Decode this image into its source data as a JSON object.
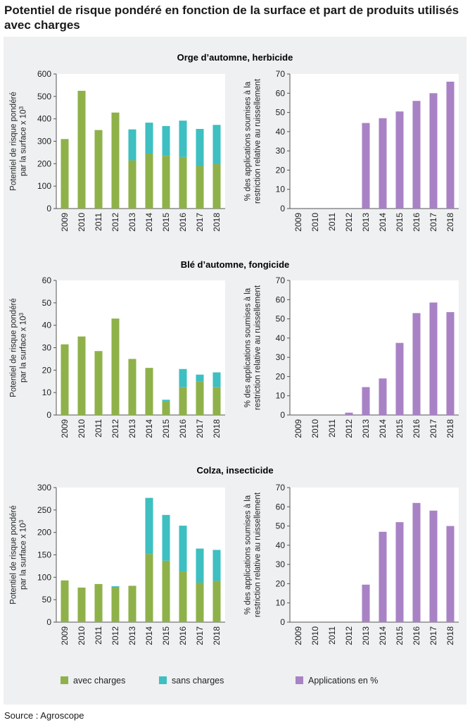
{
  "header": {
    "title": "Potentiel de risque pondéré en fonction de la surface et part de produits utilisés avec charges"
  },
  "footer": {
    "source": "Source : Agroscope"
  },
  "colors": {
    "avec": "#8fb14a",
    "sans": "#3ebfc1",
    "pct": "#a882c5",
    "panel": "#eef0f2",
    "plot": "#ffffff"
  },
  "legend": {
    "avec": "avec charges",
    "sans": "sans charges",
    "pct": "Applications en %"
  },
  "chart_data": [
    {
      "type": "bar",
      "stacked": true,
      "title": "Orge d’automne, herbicide",
      "ylabel": [
        "Potentiel de risque pondéré",
        "par la surface x 10"
      ],
      "ylabel_sup": "3",
      "categories": [
        "2009",
        "2010",
        "2011",
        "2012",
        "2013",
        "2014",
        "2015",
        "2016",
        "2017",
        "2018"
      ],
      "ylim": [
        0,
        600
      ],
      "yticks": [
        "0",
        "100",
        "200",
        "300",
        "400",
        "500",
        "600"
      ],
      "series": [
        {
          "name": "avec charges",
          "values": [
            310,
            525,
            350,
            428,
            215,
            245,
            235,
            230,
            190,
            198
          ]
        },
        {
          "name": "sans charges",
          "values": [
            0,
            0,
            0,
            0,
            138,
            138,
            133,
            162,
            165,
            175
          ]
        }
      ]
    },
    {
      "type": "bar",
      "title": "Orge d’automne, herbicide",
      "ylabel": [
        "% des applications soumises à la",
        "restriction relative au ruissellement"
      ],
      "categories": [
        "2009",
        "2010",
        "2011",
        "2012",
        "2013",
        "2014",
        "2015",
        "2016",
        "2017",
        "2018"
      ],
      "ylim": [
        0,
        70
      ],
      "yticks": [
        "0",
        "10",
        "20",
        "30",
        "40",
        "50",
        "60",
        "70"
      ],
      "series": [
        {
          "name": "Applications en %",
          "values": [
            0,
            0,
            0,
            0,
            44.5,
            47,
            50.5,
            56,
            60,
            66
          ]
        }
      ]
    },
    {
      "type": "bar",
      "stacked": true,
      "title": "Blé d’automne, fongicide",
      "ylabel": [
        "Potentiel de risque pondéré",
        "par la surface x 10"
      ],
      "ylabel_sup": "3",
      "categories": [
        "2009",
        "2010",
        "2011",
        "2012",
        "2013",
        "2014",
        "2015",
        "2016",
        "2017",
        "2018"
      ],
      "ylim": [
        0,
        60
      ],
      "yticks": [
        "0",
        "10",
        "20",
        "30",
        "40",
        "50",
        "60"
      ],
      "series": [
        {
          "name": "avec charges",
          "values": [
            31.5,
            35,
            28.5,
            43,
            25,
            21,
            6,
            12.5,
            15,
            12.5
          ]
        },
        {
          "name": "sans charges",
          "values": [
            0,
            0,
            0,
            0,
            0,
            0,
            0.8,
            8,
            3,
            6.5
          ]
        }
      ]
    },
    {
      "type": "bar",
      "title": "Blé d’automne, fongicide",
      "ylabel": [
        "% des applications soumises à la",
        "restriction relative au ruissellement"
      ],
      "categories": [
        "2009",
        "2010",
        "2011",
        "2012",
        "2013",
        "2014",
        "2015",
        "2016",
        "2017",
        "2018"
      ],
      "ylim": [
        0,
        70
      ],
      "yticks": [
        "0",
        "10",
        "20",
        "30",
        "40",
        "50",
        "60",
        "70"
      ],
      "series": [
        {
          "name": "Applications en %",
          "values": [
            0,
            0,
            0,
            1.2,
            14.5,
            19,
            37.5,
            53,
            58.5,
            53.5
          ]
        }
      ]
    },
    {
      "type": "bar",
      "stacked": true,
      "title": "Colza, insecticide",
      "ylabel": [
        "Potentiel de risque pondéré",
        "par la surface x 10"
      ],
      "ylabel_sup": "3",
      "categories": [
        "2009",
        "2010",
        "2011",
        "2012",
        "2013",
        "2014",
        "2015",
        "2016",
        "2017",
        "2018"
      ],
      "ylim": [
        0,
        300
      ],
      "yticks": [
        "0",
        "50",
        "100",
        "150",
        "200",
        "250",
        "300"
      ],
      "series": [
        {
          "name": "avec charges",
          "values": [
            93,
            77,
            85,
            77,
            81,
            152,
            137,
            113,
            88,
            92
          ]
        },
        {
          "name": "sans charges",
          "values": [
            0,
            0,
            0,
            3,
            0,
            125,
            102,
            102,
            76,
            69
          ]
        }
      ]
    },
    {
      "type": "bar",
      "title": "Colza, insecticide",
      "ylabel": [
        "% des applications soumises à la",
        "restriction relative au ruissellement"
      ],
      "categories": [
        "2009",
        "2010",
        "2011",
        "2012",
        "2013",
        "2014",
        "2015",
        "2016",
        "2017",
        "2018"
      ],
      "ylim": [
        0,
        70
      ],
      "yticks": [
        "0",
        "10",
        "20",
        "30",
        "40",
        "50",
        "60",
        "70"
      ],
      "series": [
        {
          "name": "Applications en %",
          "values": [
            0,
            0,
            0,
            0,
            19.5,
            47,
            52,
            62,
            58,
            50
          ]
        }
      ]
    }
  ]
}
